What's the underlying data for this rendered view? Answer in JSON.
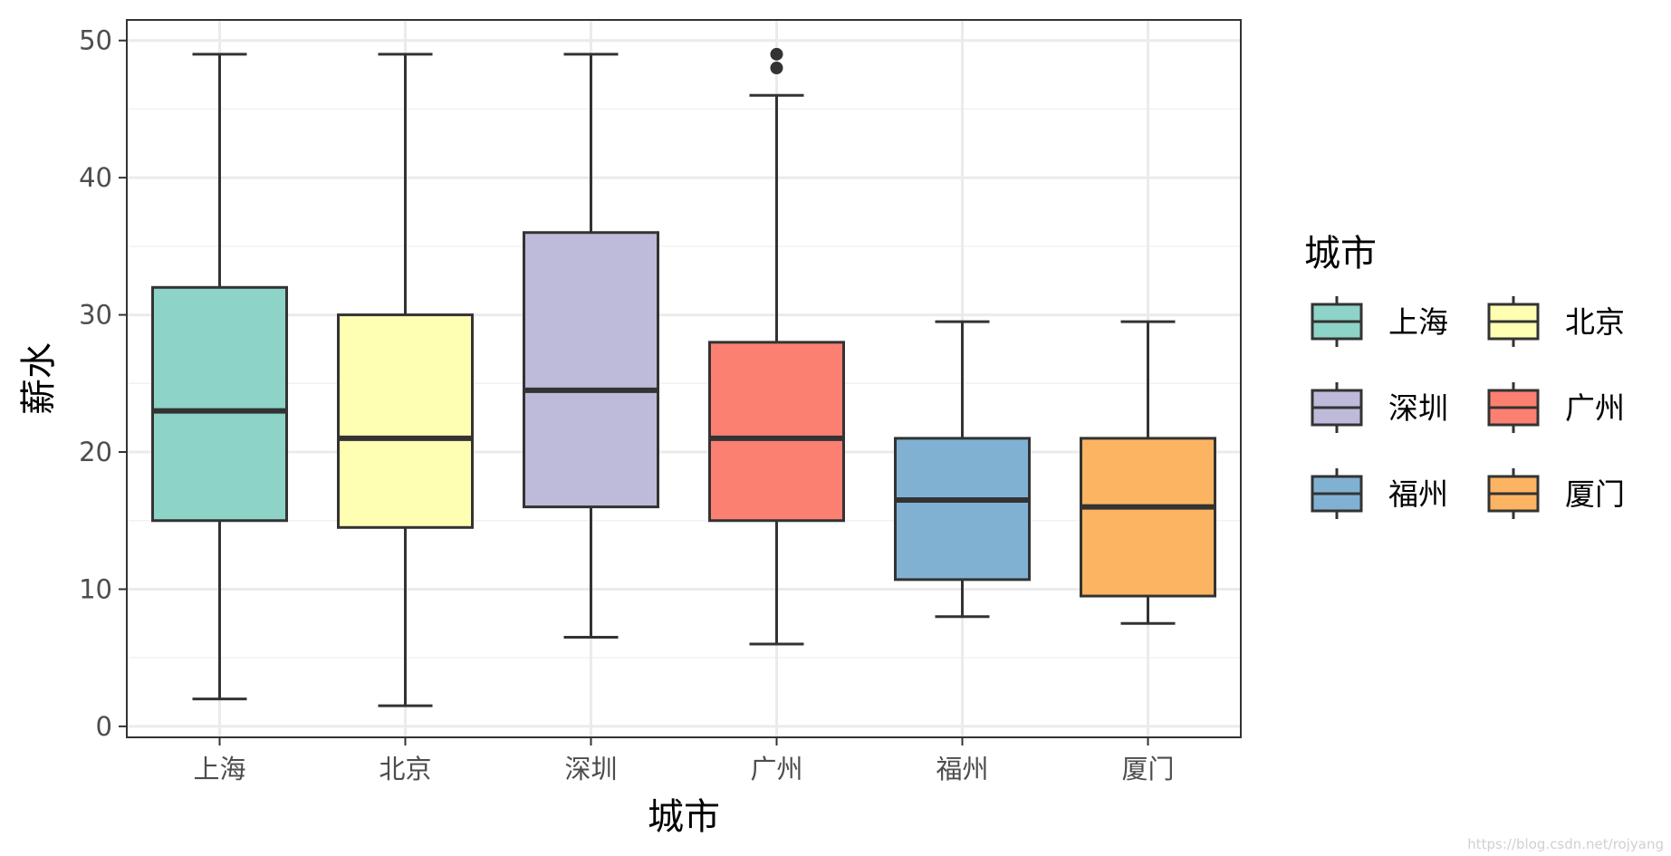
{
  "chart_data": {
    "type": "boxplot",
    "xlabel": "城市",
    "ylabel": "薪水",
    "ylim": [
      -0.8,
      51.5
    ],
    "yticks": [
      0,
      10,
      20,
      30,
      40,
      50
    ],
    "grid": true,
    "legend": {
      "title": "城市",
      "position": "right",
      "columns": 2
    },
    "categories": [
      "上海",
      "北京",
      "深圳",
      "广州",
      "福州",
      "厦门"
    ],
    "series": [
      {
        "name": "上海",
        "color": "#8DD3C7",
        "whisker_low": 2,
        "q1": 15,
        "median": 23,
        "q3": 32,
        "whisker_high": 49,
        "outliers": []
      },
      {
        "name": "北京",
        "color": "#FFFFB3",
        "whisker_low": 1.5,
        "q1": 14.5,
        "median": 21,
        "q3": 30,
        "whisker_high": 49,
        "outliers": []
      },
      {
        "name": "深圳",
        "color": "#BEBADA",
        "whisker_low": 6.5,
        "q1": 16,
        "median": 24.5,
        "q3": 36,
        "whisker_high": 49,
        "outliers": []
      },
      {
        "name": "广州",
        "color": "#FB8072",
        "whisker_low": 6,
        "q1": 15,
        "median": 21,
        "q3": 28,
        "whisker_high": 46,
        "outliers": [
          48,
          49
        ]
      },
      {
        "name": "福州",
        "color": "#80B1D3",
        "whisker_low": 8,
        "q1": 10.7,
        "median": 16.5,
        "q3": 21,
        "whisker_high": 29.5,
        "outliers": []
      },
      {
        "name": "厦门",
        "color": "#FDB462",
        "whisker_low": 7.5,
        "q1": 9.5,
        "median": 16,
        "q3": 21,
        "whisker_high": 29.5,
        "outliers": []
      }
    ]
  },
  "watermark": "https://blog.csdn.net/rojyang"
}
